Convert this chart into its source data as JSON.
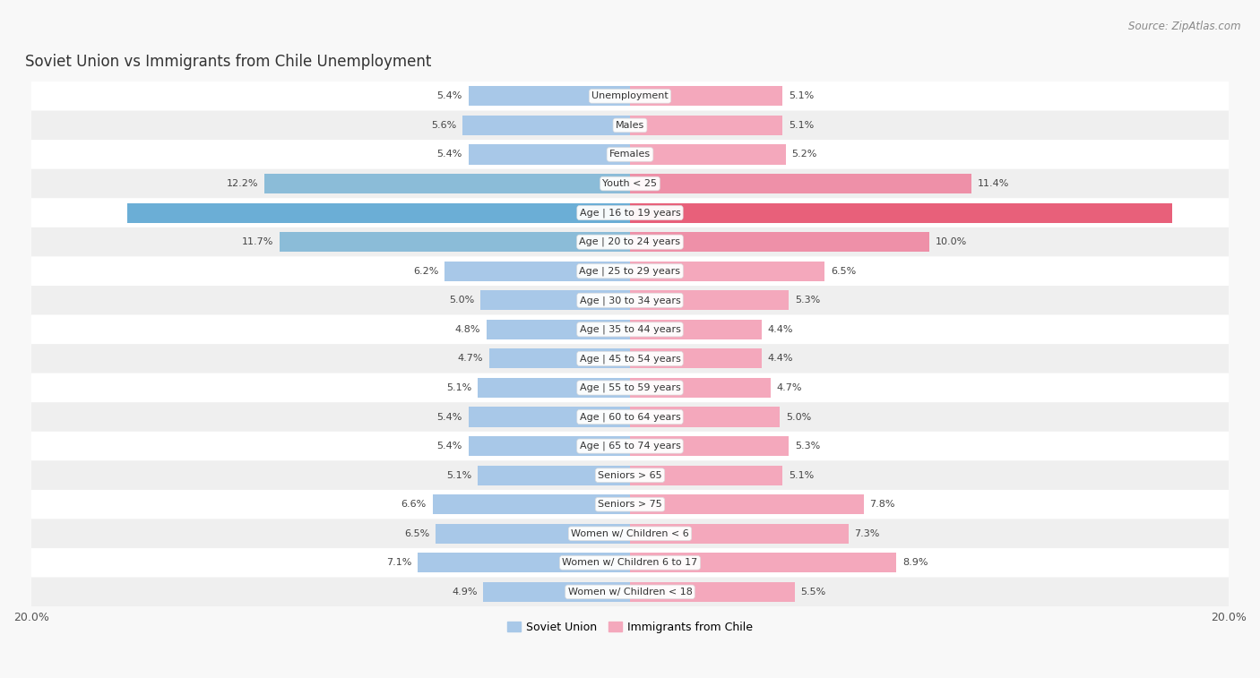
{
  "title": "Soviet Union vs Immigrants from Chile Unemployment",
  "source": "Source: ZipAtlas.com",
  "categories": [
    "Unemployment",
    "Males",
    "Females",
    "Youth < 25",
    "Age | 16 to 19 years",
    "Age | 20 to 24 years",
    "Age | 25 to 29 years",
    "Age | 30 to 34 years",
    "Age | 35 to 44 years",
    "Age | 45 to 54 years",
    "Age | 55 to 59 years",
    "Age | 60 to 64 years",
    "Age | 65 to 74 years",
    "Seniors > 65",
    "Seniors > 75",
    "Women w/ Children < 6",
    "Women w/ Children 6 to 17",
    "Women w/ Children < 18"
  ],
  "soviet_values": [
    5.4,
    5.6,
    5.4,
    12.2,
    16.8,
    11.7,
    6.2,
    5.0,
    4.8,
    4.7,
    5.1,
    5.4,
    5.4,
    5.1,
    6.6,
    6.5,
    7.1,
    4.9
  ],
  "chile_values": [
    5.1,
    5.1,
    5.2,
    11.4,
    18.1,
    10.0,
    6.5,
    5.3,
    4.4,
    4.4,
    4.7,
    5.0,
    5.3,
    5.1,
    7.8,
    7.3,
    8.9,
    5.5
  ],
  "soviet_color": "#a8c8e8",
  "chile_color": "#f4a8bc",
  "soviet_color_strong": "#6baed6",
  "chile_color_strong": "#e8607a",
  "xlim": 20.0,
  "bar_height": 0.68,
  "bg_color": "#f8f8f8",
  "row_bg_white": "#ffffff",
  "row_bg_gray": "#efefef",
  "legend_soviet": "Soviet Union",
  "legend_chile": "Immigrants from Chile",
  "title_fontsize": 12,
  "source_fontsize": 8.5,
  "label_fontsize": 8.0,
  "category_fontsize": 8.0
}
